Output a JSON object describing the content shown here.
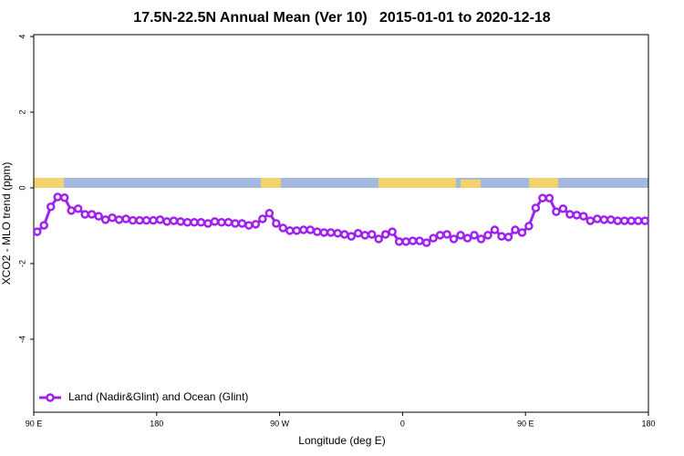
{
  "chart_data": {
    "type": "line",
    "title": "17.5N-22.5N Annual Mean (Ver 10)   2015-01-01 to 2020-12-18",
    "xlabel": "Longitude (deg E)",
    "ylabel": "XCO2 - MLO trend (ppm)",
    "xlim": [
      90,
      540
    ],
    "xticks": [
      {
        "value": 90,
        "label": "90 E"
      },
      180,
      {
        "value": 270,
        "label": "90 W"
      },
      {
        "value": 360,
        "label": "0"
      },
      {
        "value": 450,
        "label": "90 E"
      },
      {
        "value": 540,
        "label": "180"
      }
    ],
    "ylim": [
      -5.93,
      4.05
    ],
    "yticks": [
      -4,
      -2,
      0,
      2,
      4
    ],
    "legend": "bottom-left",
    "x": [
      92.5,
      97.5,
      102.5,
      107.5,
      112.5,
      117.5,
      122.5,
      127.5,
      132.5,
      137.5,
      142.5,
      147.5,
      152.5,
      157.5,
      162.5,
      167.5,
      172.5,
      177.5,
      182.5,
      187.5,
      192.5,
      197.5,
      202.5,
      207.5,
      212.5,
      217.5,
      222.5,
      227.5,
      232.5,
      237.5,
      242.5,
      247.5,
      252.5,
      257.5,
      262.5,
      267.5,
      272.5,
      277.5,
      282.5,
      287.5,
      292.5,
      297.5,
      302.5,
      307.5,
      312.5,
      317.5,
      322.5,
      327.5,
      332.5,
      337.5,
      342.5,
      347.5,
      352.5,
      357.5,
      362.5,
      367.5,
      372.5,
      377.5,
      382.5,
      387.5,
      392.5,
      397.5,
      402.5,
      407.5,
      412.5,
      417.5,
      422.5,
      427.5,
      432.5,
      437.5,
      442.5,
      447.5,
      452.5,
      457.5,
      462.5,
      467.5,
      472.5,
      477.5,
      482.5,
      487.5,
      492.5,
      497.5,
      502.5,
      507.5,
      512.5,
      517.5,
      522.5,
      527.5,
      532.5,
      537.5
    ],
    "series": [
      {
        "name": "Land (Nadir&Glint) and Ocean (Glint)",
        "color": "#a020f0",
        "values": [
          -1.16,
          -0.99,
          -0.5,
          -0.24,
          -0.26,
          -0.6,
          -0.55,
          -0.7,
          -0.7,
          -0.75,
          -0.84,
          -0.79,
          -0.84,
          -0.82,
          -0.86,
          -0.86,
          -0.86,
          -0.86,
          -0.84,
          -0.89,
          -0.87,
          -0.89,
          -0.91,
          -0.91,
          -0.91,
          -0.94,
          -0.89,
          -0.91,
          -0.91,
          -0.94,
          -0.94,
          -0.99,
          -0.96,
          -0.82,
          -0.67,
          -0.94,
          -1.06,
          -1.13,
          -1.13,
          -1.11,
          -1.11,
          -1.16,
          -1.18,
          -1.18,
          -1.2,
          -1.23,
          -1.28,
          -1.2,
          -1.25,
          -1.23,
          -1.35,
          -1.23,
          -1.16,
          -1.42,
          -1.42,
          -1.4,
          -1.4,
          -1.45,
          -1.33,
          -1.25,
          -1.23,
          -1.35,
          -1.25,
          -1.33,
          -1.25,
          -1.35,
          -1.25,
          -1.11,
          -1.28,
          -1.3,
          -1.11,
          -1.18,
          -1.01,
          -0.53,
          -0.27,
          -0.27,
          -0.63,
          -0.55,
          -0.7,
          -0.72,
          -0.75,
          -0.87,
          -0.82,
          -0.84,
          -0.84,
          -0.87,
          -0.87,
          -0.87,
          -0.87,
          -0.87
        ]
      }
    ]
  }
}
